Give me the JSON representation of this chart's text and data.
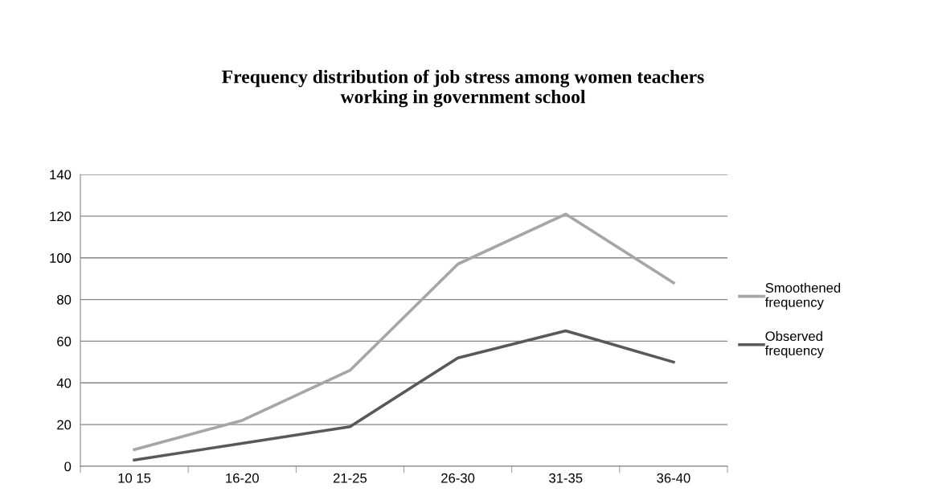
{
  "chart_data": {
    "type": "line",
    "title": "Frequency distribution of job stress among women teachers\nworking in government school",
    "categories": [
      "10 15",
      "16-20",
      "21-25",
      "26-30",
      "31-35",
      "36-40"
    ],
    "series": [
      {
        "name": "Smoothened\nfrequency",
        "color": "#a6a6a6",
        "values": [
          8,
          22,
          46,
          97,
          121,
          88
        ]
      },
      {
        "name": "Observed\nfrequency",
        "color": "#595959",
        "values": [
          3,
          11,
          19,
          52,
          65,
          50
        ]
      }
    ],
    "ylim": [
      0,
      140
    ],
    "yticks": [
      0,
      20,
      40,
      60,
      80,
      100,
      120,
      140
    ],
    "grid": "y",
    "legend": "right",
    "marker": "none",
    "line_style": "solid"
  }
}
